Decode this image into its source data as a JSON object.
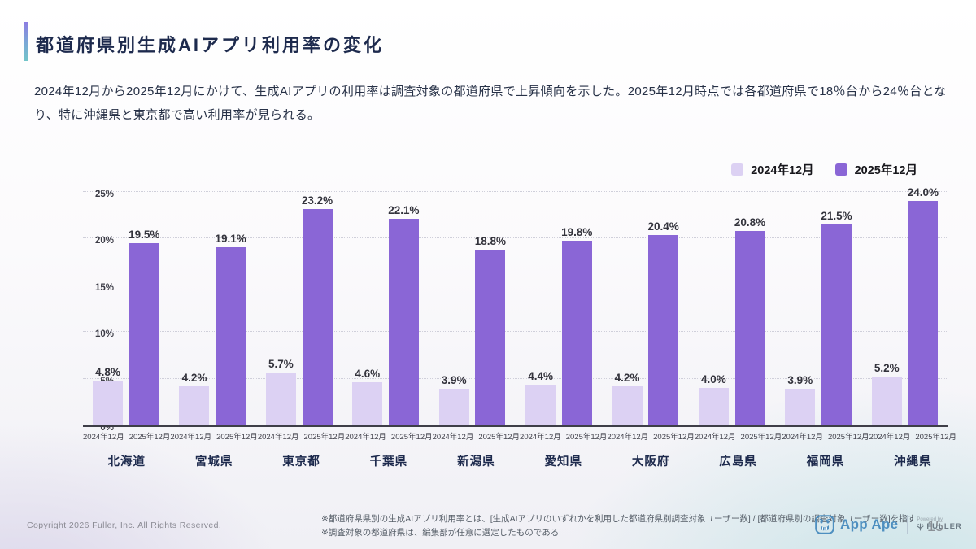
{
  "slide": {
    "title": "都道府県別生成AIアプリ利用率の変化",
    "description": "2024年12月から2025年12月にかけて、生成AIアプリの利用率は調査対象の都道府県で上昇傾向を示した。2025年12月時点では各都道府県で18％台から24％台となり、特に沖縄県と東京都で高い利用率が見られる。",
    "page_number": "15"
  },
  "legend": [
    {
      "label": "2024年12月",
      "color": "#DCD1F3"
    },
    {
      "label": "2025年12月",
      "color": "#8A66D6"
    }
  ],
  "chart_data": {
    "type": "bar",
    "title": "都道府県別生成AIアプリ利用率の変化",
    "categories": [
      "北海道",
      "宮城県",
      "東京都",
      "千葉県",
      "新潟県",
      "愛知県",
      "大阪府",
      "広島県",
      "福岡県",
      "沖縄県"
    ],
    "series": [
      {
        "name": "2024年12月",
        "color": "#DCD1F3",
        "values": [
          4.8,
          4.2,
          5.7,
          4.6,
          3.9,
          4.4,
          4.2,
          4.0,
          3.9,
          5.2
        ]
      },
      {
        "name": "2025年12月",
        "color": "#8A66D6",
        "values": [
          19.5,
          19.1,
          23.2,
          22.1,
          18.8,
          19.8,
          20.4,
          20.8,
          21.5,
          24.0
        ]
      }
    ],
    "bar_tick_labels": [
      "2024年12月",
      "2025年12月"
    ],
    "y_tick_values": [
      0,
      5,
      10,
      15,
      20,
      25
    ],
    "y_tick_labels": [
      "0%",
      "5%",
      "10%",
      "15%",
      "20%",
      "25%"
    ],
    "ylabel": "",
    "xlabel": "",
    "ylim": [
      0,
      25
    ],
    "value_suffix": "%",
    "grid": "horizontal-dotted",
    "legend_position": "top-right"
  },
  "footer": {
    "copyright": "Copyright 2026 Fuller, Inc. All Rights Reserved.",
    "notes": [
      "※都道府県県別の生成AIアプリ利用率とは、[生成AIアプリのいずれかを利用した都道府県別調査対象ユーザー数] / [都道府県別の調査対象ユーザー数]を指す",
      "※調査対象の都道府県は、編集部が任意に選定したものである"
    ],
    "brand": {
      "name": "App Ape",
      "powered_by": "Powered by",
      "company": "FULLER",
      "brand_color": "#4e8fc0"
    }
  }
}
